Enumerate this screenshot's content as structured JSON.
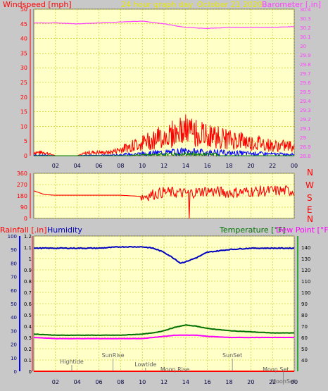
{
  "header": {
    "title": "24 hour graph day",
    "date": "October 21 2020",
    "left_label": "Windspeed [mph]",
    "right_label": "Barometer [.in]"
  },
  "colors": {
    "panel_bg": "#ffffc8",
    "grid": "#c0c000",
    "title_color": "#e8e800",
    "wind": "#ff0000",
    "gust": "#0000ff",
    "green": "#008000",
    "barometer": "#ff40ff",
    "humidity": "#0000c0",
    "temperature": "#007000",
    "dewpoint": "#ff00ff",
    "rainfall": "#ff0000",
    "axis_red": "#ff0000"
  },
  "bottom_labels": {
    "rainfall": "Rainfall [.in]",
    "humidity": "Humidity",
    "temperature": "Temperature [°F]",
    "dewpoint": "Dew Point [°F]"
  },
  "compass": [
    "N",
    "W",
    "S",
    "E",
    "N"
  ],
  "annotations": [
    {
      "text": "Hightide",
      "hour": 3.5
    },
    {
      "text": "SunRise",
      "hour": 7.3
    },
    {
      "text": "Lowtide",
      "hour": 10.3
    },
    {
      "text": "Moon Rise",
      "hour": 13.0
    },
    {
      "text": "SunSet",
      "hour": 18.3
    },
    {
      "text": "Moon Set",
      "hour": 22.3
    },
    {
      "text": "MoonSet",
      "hour": 23.0
    }
  ],
  "chart_data": [
    {
      "type": "line",
      "name": "windspeed-barometer",
      "x_ticks": [
        "02",
        "04",
        "06",
        "08",
        "10",
        "12",
        "14",
        "16",
        "18",
        "20",
        "22",
        "00"
      ],
      "xlim": [
        0,
        24
      ],
      "ylim_left": [
        0,
        50
      ],
      "yticks_left": [
        0,
        5,
        10,
        15,
        20,
        25,
        30,
        35,
        40,
        45,
        50
      ],
      "ylim_right": [
        28.8,
        30.4
      ],
      "yticks_right": [
        "28.8",
        "28.9",
        "29",
        "29.1",
        "29.2",
        "29.3",
        "29.4",
        "29.5",
        "29.6",
        "29.7",
        "29.8",
        "29.9",
        "30",
        "30.1",
        "30.2",
        "30.3",
        "30.4"
      ],
      "series": [
        {
          "name": "Windspeed",
          "axis": "left",
          "x": [
            0,
            1,
            2,
            3,
            4,
            5,
            6,
            7,
            8,
            9,
            10,
            11,
            12,
            13,
            14,
            15,
            16,
            17,
            18,
            19,
            20,
            21,
            22,
            23,
            24
          ],
          "values": [
            1,
            1,
            0,
            0,
            0,
            1,
            1,
            1,
            2,
            3,
            4,
            5,
            6,
            7,
            8,
            7,
            6,
            6,
            5,
            5,
            4,
            4,
            3,
            3,
            3
          ]
        },
        {
          "name": "Barometer",
          "axis": "right",
          "x": [
            0,
            2,
            4,
            6,
            8,
            10,
            12,
            14,
            16,
            18,
            20,
            22,
            24
          ],
          "values": [
            30.25,
            30.25,
            30.24,
            30.25,
            30.26,
            30.27,
            30.24,
            30.2,
            30.19,
            30.2,
            30.2,
            30.2,
            30.21
          ]
        }
      ]
    },
    {
      "type": "line",
      "name": "wind-direction",
      "xlim": [
        0,
        24
      ],
      "ylim": [
        0,
        360
      ],
      "yticks": [
        0,
        90,
        180,
        270,
        360
      ],
      "series": [
        {
          "name": "Wind Direction",
          "x": [
            0,
            1,
            2,
            4,
            6,
            8,
            10,
            12,
            14,
            16,
            18,
            20,
            22,
            24
          ],
          "values": [
            220,
            190,
            185,
            185,
            185,
            185,
            175,
            210,
            200,
            220,
            205,
            215,
            220,
            220
          ]
        }
      ]
    },
    {
      "type": "line",
      "name": "rain-humidity-temperature",
      "x_ticks": [
        "02",
        "04",
        "06",
        "08",
        "10",
        "12",
        "14",
        "16",
        "18",
        "20",
        "22",
        "00"
      ],
      "xlim": [
        0,
        24
      ],
      "ylim_rain": [
        0,
        1.2
      ],
      "yticks_rain": [
        "0",
        "0.1",
        "0.2",
        "0.3",
        "0.4",
        "0.5",
        "0.6",
        "0.7",
        "0.8",
        "0.9",
        "1",
        "1.1",
        "1.2"
      ],
      "ylim_humidity": [
        0,
        100
      ],
      "yticks_humidity": [
        0,
        10,
        20,
        30,
        40,
        50,
        60,
        70,
        80,
        90,
        100
      ],
      "ylim_temp": [
        30,
        150
      ],
      "yticks_temp": [
        40,
        50,
        60,
        70,
        80,
        90,
        100,
        110,
        120,
        130,
        140
      ],
      "series": [
        {
          "name": "Rainfall",
          "axis": "rain",
          "x": [
            0,
            24
          ],
          "values": [
            0,
            0
          ]
        },
        {
          "name": "Humidity",
          "axis": "humidity",
          "x": [
            0,
            2,
            4,
            6,
            8,
            10,
            11,
            12,
            13,
            13.5,
            14,
            15,
            16,
            18,
            20,
            22,
            24
          ],
          "values": [
            91,
            91,
            91,
            91,
            92,
            92,
            91,
            88,
            83,
            80,
            81,
            84,
            88,
            90,
            91,
            91,
            91
          ]
        },
        {
          "name": "Temperature",
          "axis": "temp",
          "x": [
            0,
            2,
            4,
            6,
            8,
            10,
            11,
            12,
            13,
            14,
            15,
            16,
            18,
            20,
            22,
            24
          ],
          "values": [
            63,
            62,
            62,
            62,
            62,
            63,
            64,
            66,
            69,
            71,
            70,
            68,
            66,
            65,
            64,
            64
          ]
        },
        {
          "name": "Dew Point",
          "axis": "temp",
          "x": [
            0,
            2,
            4,
            6,
            8,
            10,
            11,
            12,
            13,
            14,
            15,
            16,
            18,
            20,
            22,
            24
          ],
          "values": [
            60,
            59,
            59,
            59,
            59,
            59,
            60,
            61,
            62,
            62,
            62,
            61,
            60,
            60,
            60,
            60
          ]
        }
      ]
    }
  ]
}
